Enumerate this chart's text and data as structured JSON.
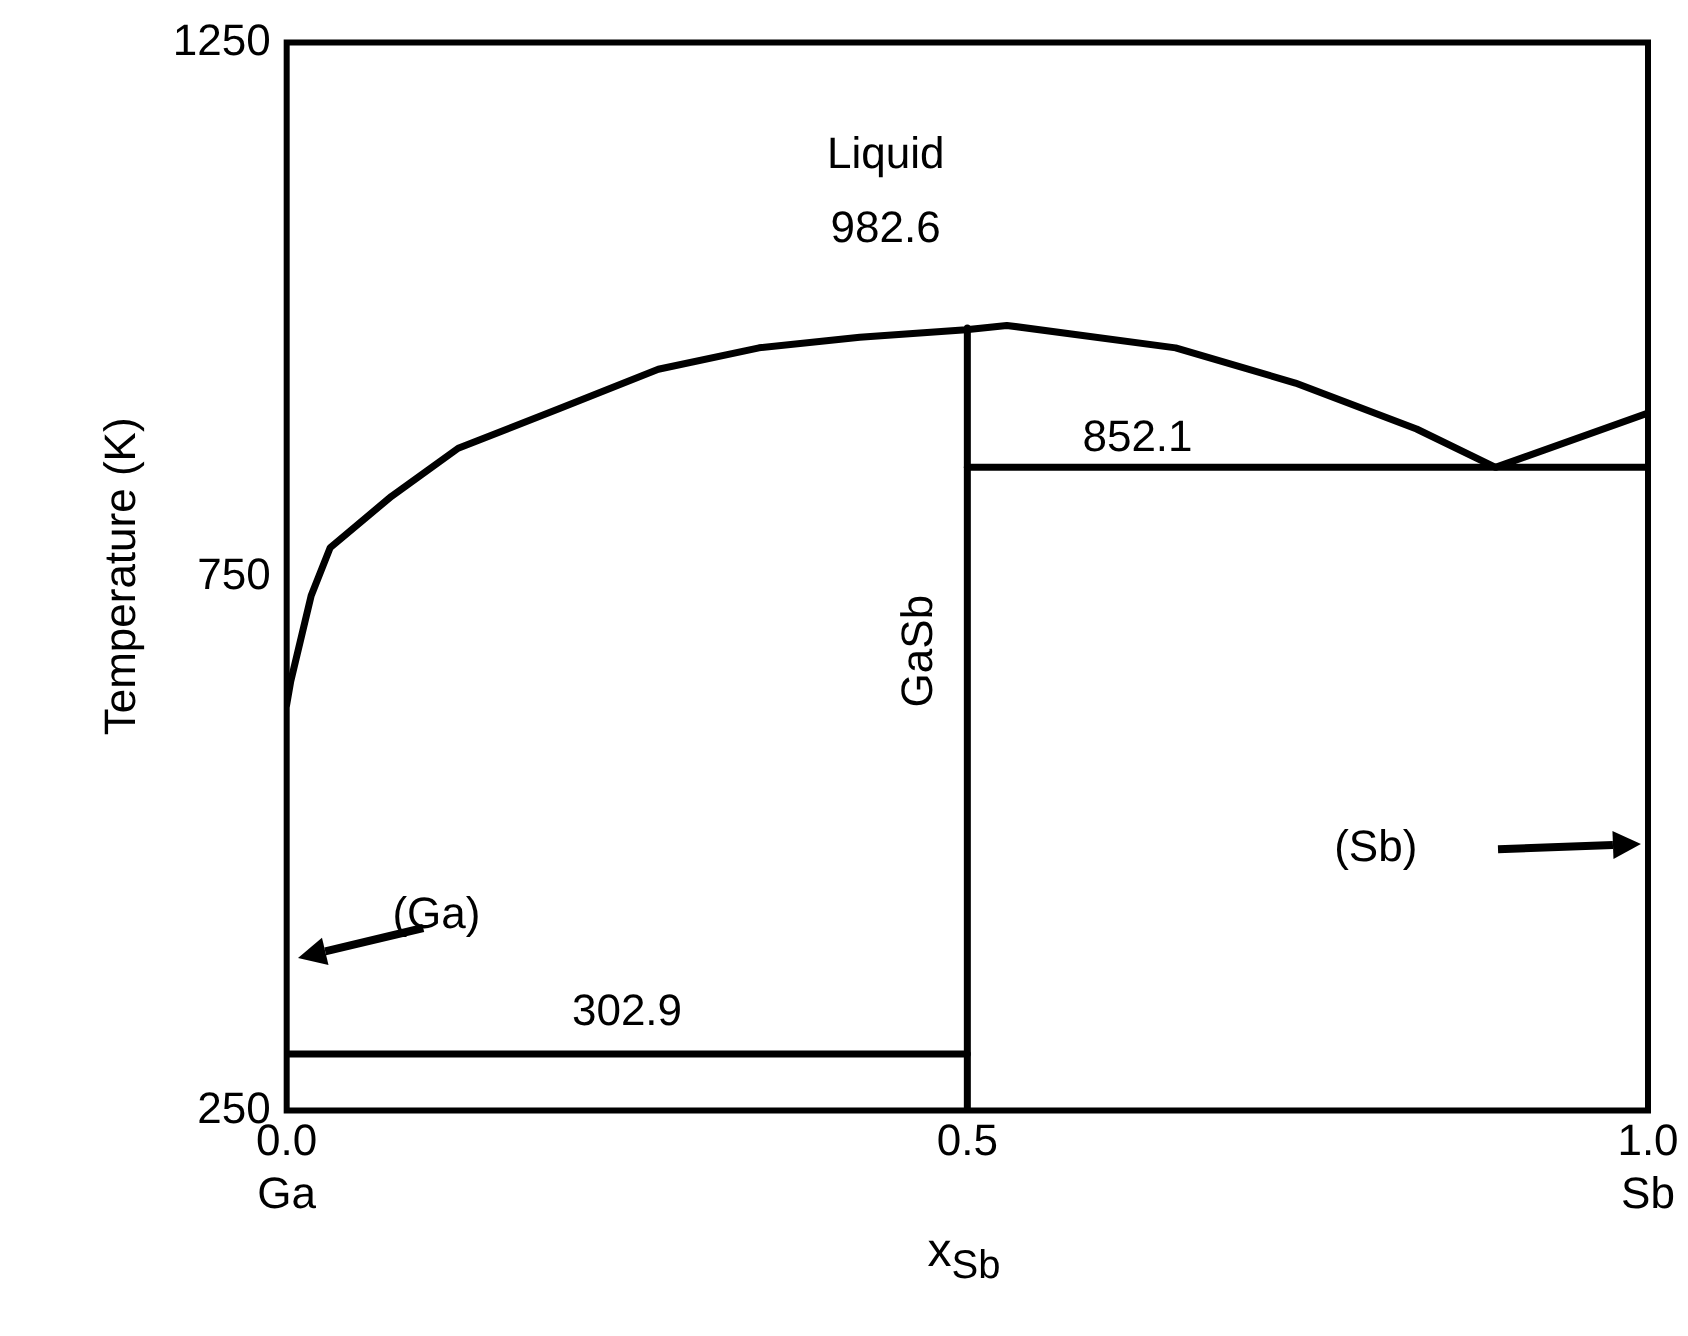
{
  "chart_data": {
    "type": "line",
    "xlabel": "x$_{Sb}$",
    "ylabel": "Temperature (K)",
    "xlim": [
      0,
      1
    ],
    "ylim": [
      250,
      1250
    ],
    "xticks": [
      {
        "value": 0,
        "label": "0.0\nGa"
      },
      {
        "value": 0.5,
        "label": "0.5"
      },
      {
        "value": 1,
        "label": "1.0\nSb"
      }
    ],
    "yticks": [
      250,
      750,
      1250
    ],
    "grid": false,
    "legend": false,
    "marker": "none",
    "line_style": "solid",
    "series": [
      {
        "color": "#000000",
        "x": [
          0,
          0.003,
          0.018,
          0.032,
          0.077,
          0.126,
          0.2,
          0.273,
          0.347,
          0.421,
          0.499,
          0.529,
          0.653,
          0.741,
          0.83,
          0.888,
          1
        ],
        "values": [
          630,
          652,
          732,
          777,
          825,
          870,
          907,
          944,
          964,
          974,
          981,
          985,
          964,
          931,
          888,
          852.1,
          903
        ]
      },
      {
        "color": "#000000",
        "x": [
          0.5,
          0.5
        ],
        "values": [
          250,
          982.6
        ]
      },
      {
        "color": "#000000",
        "x": [
          0.5,
          1
        ],
        "values": [
          852.1,
          852.1
        ]
      },
      {
        "color": "#000000",
        "x": [
          0,
          0.5
        ],
        "values": [
          302.9,
          302.9
        ]
      }
    ],
    "annotations": [
      "Liquid",
      "982.6",
      "852.1",
      "302.9",
      "GaSb",
      "(Ga)",
      "(Sb)"
    ]
  }
}
